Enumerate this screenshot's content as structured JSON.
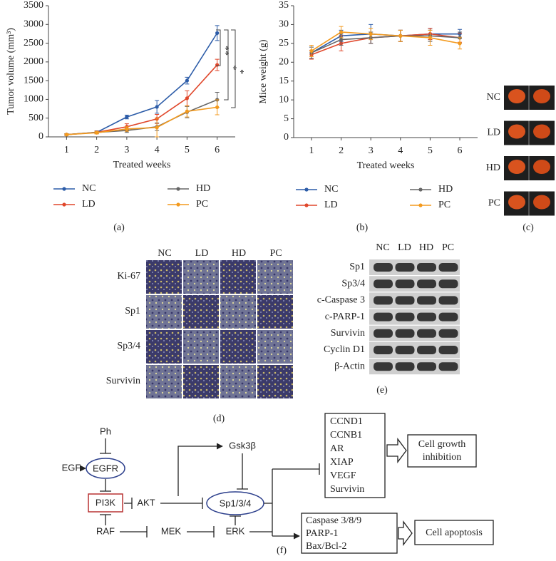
{
  "chart_data": [
    {
      "type": "line",
      "ylabel": "Tumor volume (mm³)",
      "xlabel": "Treated weeks",
      "x": [
        1,
        2,
        3,
        4,
        5,
        6
      ],
      "xlim": [
        0.4,
        6.6
      ],
      "xticks": [
        1,
        2,
        3,
        4,
        5,
        6
      ],
      "ylim": [
        0,
        3500
      ],
      "yticks": [
        0,
        500,
        1000,
        1500,
        2000,
        2500,
        3000,
        3500
      ],
      "legend": "bottom",
      "series": [
        {
          "name": "NC",
          "color": "#2c5ca8",
          "values": [
            60,
            120,
            530,
            800,
            1500,
            2770
          ],
          "errors": [
            20,
            30,
            50,
            170,
            90,
            200
          ]
        },
        {
          "name": "LD",
          "color": "#e0472b",
          "values": [
            60,
            120,
            270,
            480,
            1030,
            1920
          ],
          "errors": [
            20,
            40,
            80,
            120,
            200,
            150
          ]
        },
        {
          "name": "HD",
          "color": "#666666",
          "values": [
            60,
            120,
            170,
            270,
            660,
            990
          ],
          "errors": [
            20,
            30,
            50,
            100,
            150,
            200
          ]
        },
        {
          "name": "PC",
          "color": "#f39a1e",
          "values": [
            60,
            110,
            210,
            250,
            680,
            790
          ],
          "errors": [
            20,
            30,
            60,
            250,
            150,
            200
          ]
        }
      ],
      "annotations": [
        "**",
        "*",
        "*"
      ]
    },
    {
      "type": "line",
      "ylabel": "Mice weight (g)",
      "xlabel": "Treated weeks",
      "x": [
        1,
        2,
        3,
        4,
        5,
        6
      ],
      "xlim": [
        0.4,
        6.6
      ],
      "xticks": [
        1,
        2,
        3,
        4,
        5,
        6
      ],
      "ylim": [
        0,
        35
      ],
      "yticks": [
        0,
        5,
        10,
        15,
        20,
        25,
        30,
        35
      ],
      "legend": "bottom",
      "series": [
        {
          "name": "NC",
          "color": "#2c5ca8",
          "values": [
            22.5,
            27,
            27.5,
            27,
            27.5,
            27.5
          ],
          "errors": [
            1.5,
            1.5,
            2.5,
            1.5,
            1.5,
            1.2
          ]
        },
        {
          "name": "LD",
          "color": "#e0472b",
          "values": [
            22,
            25,
            26.5,
            27,
            27.5,
            26.5
          ],
          "errors": [
            1.2,
            2,
            1.5,
            1.5,
            1.5,
            1.2
          ]
        },
        {
          "name": "HD",
          "color": "#666666",
          "values": [
            22.5,
            26,
            26.5,
            27,
            27,
            26.5
          ],
          "errors": [
            1.5,
            1.5,
            1.5,
            1.5,
            1.5,
            1.5
          ]
        },
        {
          "name": "PC",
          "color": "#f39a1e",
          "values": [
            23,
            28,
            27.5,
            27,
            26.5,
            25
          ],
          "errors": [
            1.5,
            1.5,
            1.5,
            1.5,
            2,
            1.5
          ]
        }
      ]
    }
  ],
  "panel_labels": [
    "(a)",
    "(b)",
    "(c)",
    "(d)",
    "(e)",
    "(f)"
  ],
  "panel_c": {
    "rows": [
      "NC",
      "LD",
      "HD",
      "PC"
    ]
  },
  "panel_d": {
    "columns": [
      "NC",
      "LD",
      "HD",
      "PC"
    ],
    "rows": [
      "Ki-67",
      "Sp1",
      "Sp3/4",
      "Survivin"
    ]
  },
  "panel_e": {
    "columns": [
      "NC",
      "LD",
      "HD",
      "PC"
    ],
    "rows": [
      "Sp1",
      "Sp3/4",
      "c-Caspase 3",
      "c-PARP-1",
      "Survivin",
      "Cyclin D1",
      "β-Actin"
    ]
  },
  "panel_f": {
    "nodes": [
      "Ph",
      "EGF",
      "EGFR",
      "PI3K",
      "RAF",
      "AKT",
      "MEK",
      "ERK",
      "Gsk3β",
      "Sp1/3/4"
    ],
    "growth_genes": [
      "CCND1",
      "CCNB1",
      "AR",
      "XIAP",
      "VEGF",
      "Survivin"
    ],
    "apoptosis_genes": [
      "Caspase 3/8/9",
      "PARP-1",
      "Bax/Bcl-2"
    ],
    "growth_outcome": [
      "Cell growth",
      "inhibition"
    ],
    "apoptosis_outcome": "Cell apoptosis"
  }
}
